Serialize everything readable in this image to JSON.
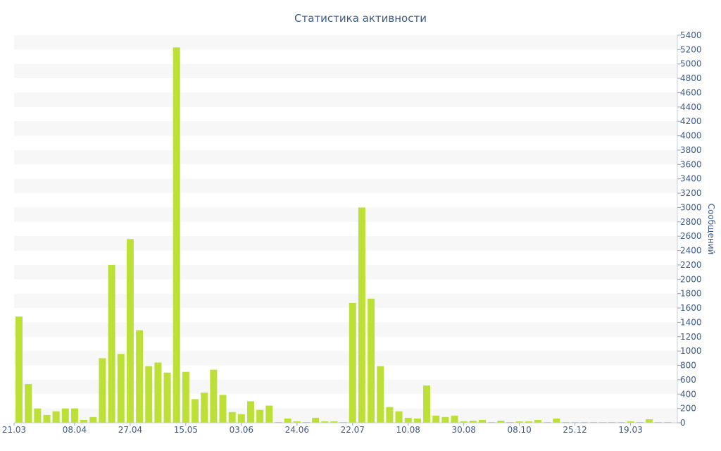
{
  "chart_data": {
    "type": "bar",
    "title": "Статистика активности",
    "xlabel": "",
    "ylabel": "Сообщений",
    "ylim": [
      0,
      5400
    ],
    "ytick_step": 200,
    "grid": "alternating horizontal bands",
    "x_tick_labels": [
      "21.03",
      "08.04",
      "27.04",
      "15.05",
      "03.06",
      "24.06",
      "22.07",
      "10.08",
      "30.08",
      "08.10",
      "25.12",
      "19.03"
    ],
    "x_tick_bar_index": [
      0,
      6,
      12,
      18,
      24,
      30,
      36,
      42,
      48,
      54,
      60,
      66
    ],
    "series": [
      {
        "color": "#bde038",
        "values": [
          1480,
          540,
          200,
          110,
          160,
          200,
          200,
          40,
          80,
          900,
          2200,
          960,
          2560,
          1290,
          790,
          840,
          700,
          5230,
          710,
          330,
          420,
          740,
          390,
          150,
          120,
          300,
          180,
          240,
          10,
          60,
          20,
          10,
          70,
          20,
          20,
          10,
          1670,
          3000,
          1730,
          790,
          220,
          160,
          70,
          60,
          520,
          100,
          80,
          100,
          20,
          30,
          40,
          10,
          30,
          10,
          20,
          20,
          40,
          10,
          60,
          10,
          10,
          10,
          10,
          10,
          10,
          10,
          20,
          10,
          50,
          10,
          10
        ]
      }
    ]
  }
}
